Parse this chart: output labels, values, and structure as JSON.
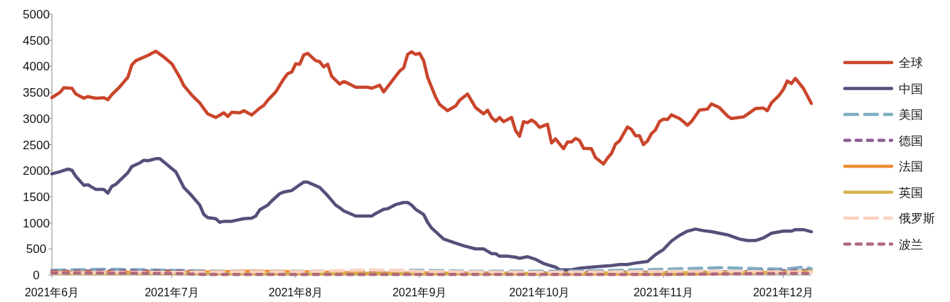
{
  "chart_data": {
    "type": "line",
    "legend": "right",
    "grid": false,
    "ylim": [
      0,
      5000
    ],
    "yticks": [
      0,
      500,
      1000,
      1500,
      2000,
      2500,
      3000,
      3500,
      4000,
      4500,
      5000
    ],
    "xlim": [
      "2021-06-01",
      "2021-12-08"
    ],
    "xticks": [
      {
        "value": "2021-06-01",
        "label": "2021年6月"
      },
      {
        "value": "2021-07-01",
        "label": "2021年7月"
      },
      {
        "value": "2021-08-01",
        "label": "2021年8月"
      },
      {
        "value": "2021-09-01",
        "label": "2021年9月"
      },
      {
        "value": "2021-10-01",
        "label": "2021年10月"
      },
      {
        "value": "2021-11-01",
        "label": "2021年11月"
      },
      {
        "value": "2021-12-01",
        "label": "2021年12月"
      }
    ],
    "series": [
      {
        "name": "全球",
        "color": "#c9452b",
        "line_style": "solid",
        "x": [
          "2021-06-01",
          "2021-06-03",
          "2021-06-04",
          "2021-06-06",
          "2021-06-07",
          "2021-06-09",
          "2021-06-10",
          "2021-06-12",
          "2021-06-14",
          "2021-06-15",
          "2021-06-16",
          "2021-06-18",
          "2021-06-20",
          "2021-06-21",
          "2021-06-22",
          "2021-06-25",
          "2021-06-27",
          "2021-06-29",
          "2021-07-01",
          "2021-07-03",
          "2021-07-04",
          "2021-07-06",
          "2021-07-08",
          "2021-07-09",
          "2021-07-10",
          "2021-07-12",
          "2021-07-14",
          "2021-07-15",
          "2021-07-16",
          "2021-07-18",
          "2021-07-19",
          "2021-07-21",
          "2021-07-23",
          "2021-07-24",
          "2021-07-25",
          "2021-07-27",
          "2021-07-29",
          "2021-07-30",
          "2021-07-31",
          "2021-08-01",
          "2021-08-02",
          "2021-08-03",
          "2021-08-04",
          "2021-08-06",
          "2021-08-07",
          "2021-08-08",
          "2021-08-09",
          "2021-08-10",
          "2021-08-12",
          "2021-08-13",
          "2021-08-14",
          "2021-08-16",
          "2021-08-19",
          "2021-08-20",
          "2021-08-22",
          "2021-08-23",
          "2021-08-25",
          "2021-08-27",
          "2021-08-28",
          "2021-08-29",
          "2021-08-30",
          "2021-08-31",
          "2021-09-01",
          "2021-09-02",
          "2021-09-03",
          "2021-09-04",
          "2021-09-05",
          "2021-09-06",
          "2021-09-08",
          "2021-09-10",
          "2021-09-11",
          "2021-09-13",
          "2021-09-15",
          "2021-09-17",
          "2021-09-18",
          "2021-09-19",
          "2021-09-20",
          "2021-09-21",
          "2021-09-22",
          "2021-09-24",
          "2021-09-25",
          "2021-09-26",
          "2021-09-27",
          "2021-09-28",
          "2021-09-29",
          "2021-09-30",
          "2021-10-01",
          "2021-10-03",
          "2021-10-04",
          "2021-10-05",
          "2021-10-07",
          "2021-10-08",
          "2021-10-09",
          "2021-10-10",
          "2021-10-11",
          "2021-10-12",
          "2021-10-14",
          "2021-10-15",
          "2021-10-17",
          "2021-10-18",
          "2021-10-19",
          "2021-10-20",
          "2021-10-21",
          "2021-10-23",
          "2021-10-24",
          "2021-10-25",
          "2021-10-26",
          "2021-10-27",
          "2021-10-28",
          "2021-10-29",
          "2021-10-30",
          "2021-10-31",
          "2021-11-01",
          "2021-11-02",
          "2021-11-03",
          "2021-11-05",
          "2021-11-06",
          "2021-11-07",
          "2021-11-08",
          "2021-11-10",
          "2021-11-12",
          "2021-11-13",
          "2021-11-15",
          "2021-11-17",
          "2021-11-18",
          "2021-11-21",
          "2021-11-22",
          "2021-11-24",
          "2021-11-26",
          "2021-11-27",
          "2021-11-28",
          "2021-11-30",
          "2021-12-01",
          "2021-12-02",
          "2021-12-03",
          "2021-12-04",
          "2021-12-06",
          "2021-12-08"
        ],
        "values": [
          3400,
          3500,
          3590,
          3580,
          3470,
          3390,
          3420,
          3390,
          3400,
          3360,
          3460,
          3610,
          3790,
          4030,
          4110,
          4210,
          4290,
          4180,
          4050,
          3790,
          3630,
          3450,
          3300,
          3190,
          3090,
          3020,
          3110,
          3040,
          3120,
          3110,
          3150,
          3070,
          3200,
          3250,
          3350,
          3510,
          3760,
          3860,
          3890,
          4050,
          4040,
          4220,
          4250,
          4110,
          4090,
          3990,
          4040,
          3810,
          3660,
          3710,
          3680,
          3600,
          3600,
          3580,
          3640,
          3510,
          3710,
          3910,
          3970,
          4230,
          4280,
          4230,
          4250,
          4110,
          3790,
          3600,
          3410,
          3270,
          3150,
          3240,
          3350,
          3470,
          3210,
          3090,
          3160,
          3020,
          2950,
          3020,
          2940,
          3020,
          2770,
          2660,
          2940,
          2920,
          2970,
          2920,
          2830,
          2890,
          2530,
          2610,
          2420,
          2550,
          2550,
          2620,
          2580,
          2430,
          2420,
          2250,
          2130,
          2240,
          2330,
          2510,
          2570,
          2840,
          2790,
          2670,
          2670,
          2500,
          2570,
          2710,
          2780,
          2940,
          2990,
          2980,
          3070,
          3000,
          2940,
          2870,
          2940,
          3160,
          3180,
          3280,
          3210,
          3050,
          3000,
          3030,
          3080,
          3190,
          3200,
          3150,
          3300,
          3450,
          3560,
          3720,
          3670,
          3770,
          3580,
          3290
        ]
      },
      {
        "name": "中国",
        "color": "#54507a",
        "line_style": "solid",
        "x": [
          "2021-06-01",
          "2021-06-03",
          "2021-06-05",
          "2021-06-06",
          "2021-06-07",
          "2021-06-09",
          "2021-06-10",
          "2021-06-12",
          "2021-06-14",
          "2021-06-15",
          "2021-06-16",
          "2021-06-17",
          "2021-06-20",
          "2021-06-21",
          "2021-06-23",
          "2021-06-24",
          "2021-06-25",
          "2021-06-27",
          "2021-06-28",
          "2021-07-01",
          "2021-07-02",
          "2021-07-04",
          "2021-07-06",
          "2021-07-08",
          "2021-07-09",
          "2021-07-10",
          "2021-07-12",
          "2021-07-13",
          "2021-07-14",
          "2021-07-16",
          "2021-07-19",
          "2021-07-21",
          "2021-07-22",
          "2021-07-23",
          "2021-07-25",
          "2021-07-26",
          "2021-07-28",
          "2021-07-29",
          "2021-07-31",
          "2021-08-02",
          "2021-08-03",
          "2021-08-04",
          "2021-08-07",
          "2021-08-09",
          "2021-08-11",
          "2021-08-12",
          "2021-08-13",
          "2021-08-16",
          "2021-08-20",
          "2021-08-21",
          "2021-08-22",
          "2021-08-23",
          "2021-08-24",
          "2021-08-26",
          "2021-08-28",
          "2021-08-29",
          "2021-08-30",
          "2021-08-31",
          "2021-09-02",
          "2021-09-03",
          "2021-09-04",
          "2021-09-07",
          "2021-09-10",
          "2021-09-12",
          "2021-09-15",
          "2021-09-17",
          "2021-09-19",
          "2021-09-20",
          "2021-09-21",
          "2021-09-23",
          "2021-09-25",
          "2021-09-26",
          "2021-09-28",
          "2021-09-30",
          "2021-10-02",
          "2021-10-05",
          "2021-10-06",
          "2021-10-09",
          "2021-10-11",
          "2021-10-14",
          "2021-10-17",
          "2021-10-19",
          "2021-10-21",
          "2021-10-23",
          "2021-10-25",
          "2021-10-28",
          "2021-10-30",
          "2021-11-01",
          "2021-11-03",
          "2021-11-05",
          "2021-11-07",
          "2021-11-09",
          "2021-11-11",
          "2021-11-13",
          "2021-11-15",
          "2021-11-17",
          "2021-11-20",
          "2021-11-22",
          "2021-11-24",
          "2021-11-26",
          "2021-11-28",
          "2021-12-01",
          "2021-12-03",
          "2021-12-04",
          "2021-12-06",
          "2021-12-08"
        ],
        "values": [
          1940,
          1980,
          2030,
          2010,
          1890,
          1720,
          1730,
          1640,
          1640,
          1570,
          1700,
          1740,
          1960,
          2080,
          2150,
          2200,
          2190,
          2230,
          2230,
          2040,
          1980,
          1680,
          1520,
          1340,
          1160,
          1100,
          1080,
          1010,
          1030,
          1030,
          1080,
          1090,
          1130,
          1250,
          1340,
          1420,
          1560,
          1590,
          1620,
          1730,
          1780,
          1780,
          1680,
          1520,
          1340,
          1290,
          1230,
          1130,
          1130,
          1180,
          1220,
          1260,
          1270,
          1350,
          1390,
          1390,
          1340,
          1260,
          1160,
          1010,
          900,
          690,
          610,
          560,
          500,
          500,
          410,
          410,
          360,
          360,
          340,
          320,
          350,
          300,
          220,
          150,
          100,
          100,
          130,
          150,
          170,
          180,
          200,
          200,
          230,
          260,
          390,
          490,
          650,
          760,
          840,
          880,
          850,
          830,
          800,
          770,
          690,
          660,
          660,
          710,
          800,
          840,
          840,
          870,
          870,
          830
        ]
      },
      {
        "name": "美国",
        "color": "#7fadc4",
        "line_style": "dashed",
        "x": [
          "2021-06-01",
          "2021-06-15",
          "2021-07-01",
          "2021-07-15",
          "2021-08-01",
          "2021-08-15",
          "2021-09-01",
          "2021-09-15",
          "2021-10-01",
          "2021-10-15",
          "2021-11-01",
          "2021-11-15",
          "2021-12-01",
          "2021-12-06",
          "2021-12-08"
        ],
        "values": [
          90,
          110,
          90,
          70,
          70,
          70,
          90,
          70,
          70,
          80,
          110,
          140,
          110,
          150,
          120
        ]
      },
      {
        "name": "德国",
        "color": "#8c5e94",
        "line_style": "dotted",
        "x": [
          "2021-06-01",
          "2021-06-15",
          "2021-07-01",
          "2021-07-10",
          "2021-08-01",
          "2021-09-01",
          "2021-10-01",
          "2021-10-15",
          "2021-11-01",
          "2021-11-15",
          "2021-12-01",
          "2021-12-08"
        ],
        "values": [
          70,
          80,
          80,
          60,
          40,
          30,
          40,
          60,
          50,
          60,
          80,
          90
        ]
      },
      {
        "name": "法国",
        "color": "#f08c34",
        "line_style": "solid",
        "x": [
          "2021-06-01",
          "2021-07-01",
          "2021-07-20",
          "2021-08-05",
          "2021-08-20",
          "2021-09-01",
          "2021-10-01",
          "2021-11-01",
          "2021-11-15",
          "2021-12-01",
          "2021-12-08"
        ],
        "values": [
          50,
          50,
          70,
          60,
          30,
          40,
          20,
          20,
          30,
          50,
          60
        ]
      },
      {
        "name": "英国",
        "color": "#d6b24c",
        "line_style": "solid",
        "x": [
          "2021-06-01",
          "2021-07-01",
          "2021-08-01",
          "2021-09-01",
          "2021-10-01",
          "2021-10-20",
          "2021-11-01",
          "2021-11-15",
          "2021-12-01",
          "2021-12-08"
        ],
        "values": [
          30,
          30,
          20,
          20,
          30,
          40,
          40,
          50,
          50,
          70
        ]
      },
      {
        "name": "俄罗斯",
        "color": "#fcd2bf",
        "line_style": "dashed",
        "x": [
          "2021-06-01",
          "2021-06-15",
          "2021-07-01",
          "2021-07-15",
          "2021-08-01",
          "2021-08-15",
          "2021-08-20",
          "2021-09-01",
          "2021-10-01",
          "2021-10-20",
          "2021-11-01",
          "2021-11-15",
          "2021-12-01",
          "2021-12-08"
        ],
        "values": [
          40,
          50,
          50,
          60,
          60,
          90,
          100,
          70,
          50,
          60,
          70,
          70,
          60,
          50
        ]
      },
      {
        "name": "波兰",
        "color": "#b06a7c",
        "line_style": "dotted",
        "x": [
          "2021-06-01",
          "2021-07-01",
          "2021-07-10",
          "2021-08-01",
          "2021-09-01",
          "2021-10-01",
          "2021-11-01",
          "2021-11-15",
          "2021-12-01",
          "2021-12-08"
        ],
        "values": [
          40,
          30,
          10,
          10,
          10,
          10,
          10,
          20,
          30,
          30
        ]
      }
    ]
  }
}
